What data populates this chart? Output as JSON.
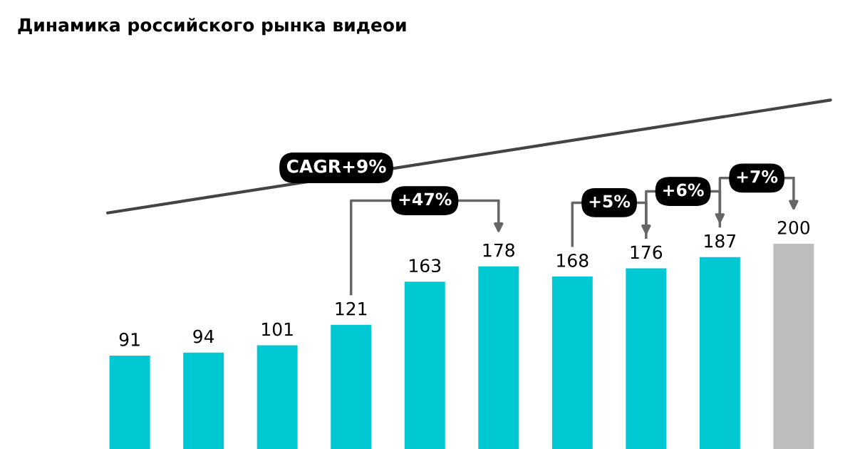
{
  "chart_data": {
    "type": "bar",
    "title": "Динамика российского рынка видеои",
    "categories": [
      null,
      null,
      null,
      null,
      null,
      null,
      null,
      null,
      null,
      null
    ],
    "values": [
      91,
      94,
      101,
      121,
      163,
      178,
      168,
      176,
      187,
      200
    ],
    "colors": [
      "#00c8d2",
      "#00c8d2",
      "#00c8d2",
      "#00c8d2",
      "#00c8d2",
      "#00c8d2",
      "#00c8d2",
      "#00c8d2",
      "#00c8d2",
      "#bdbdbd"
    ],
    "data_labels": true,
    "annotations": [
      "CAGR+9%",
      "+47%",
      "+5%",
      "+6%",
      "+7%"
    ]
  }
}
